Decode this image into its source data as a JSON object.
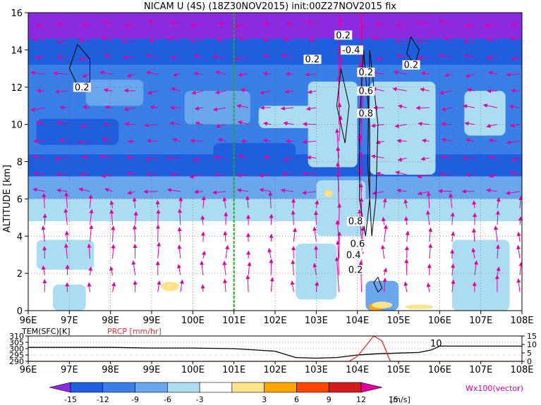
{
  "chart_data": {
    "type": "heatmap",
    "title": "NICAM U (4S) (18Z30NOV2015) init:00Z27NOV2015 fix",
    "main": {
      "ylabel": "ALTITUDE [km]",
      "xlim": [
        96,
        108
      ],
      "ylim": [
        0,
        16
      ],
      "x_ticks": [
        "96E",
        "97E",
        "98E",
        "99E",
        "100E",
        "101E",
        "102E",
        "103E",
        "104E",
        "105E",
        "106E",
        "107E",
        "108E"
      ],
      "y_ticks": [
        "0",
        "2",
        "4",
        "6",
        "8",
        "10",
        "12",
        "14",
        "16"
      ],
      "grid": true,
      "marker_line_x": 101,
      "contour_labels": [
        {
          "text": "0.2",
          "x": 97.3,
          "y": 11.9
        },
        {
          "text": "0.2",
          "x": 103.65,
          "y": 14.7
        },
        {
          "text": "0.2",
          "x": 102.9,
          "y": 13.4
        },
        {
          "text": "-0.4",
          "x": 103.8,
          "y": 13.9
        },
        {
          "text": "0.2",
          "x": 105.3,
          "y": 13.1
        },
        {
          "text": "0.2",
          "x": 104.2,
          "y": 12.7
        },
        {
          "text": "0.6",
          "x": 104.2,
          "y": 11.7
        },
        {
          "text": "0.8",
          "x": 104.2,
          "y": 10.5
        },
        {
          "text": "0.8",
          "x": 103.95,
          "y": 4.7
        },
        {
          "text": "0.6",
          "x": 104.0,
          "y": 3.5
        },
        {
          "text": "0.4",
          "x": 103.9,
          "y": 2.9
        },
        {
          "text": "0.2",
          "x": 103.95,
          "y": 2.1
        }
      ]
    },
    "sub": {
      "label_left": "TEM(SFC)[K]",
      "label_right": "PRCP [mm/hr]",
      "left_ticks": [
        "290",
        "295",
        "300",
        "305",
        "310"
      ],
      "right_ticks": [
        "0",
        "5",
        "10",
        "15"
      ],
      "x_ticks": [
        "96E",
        "97E",
        "98E",
        "99E",
        "100E",
        "101E",
        "102E",
        "103E",
        "104E",
        "105E",
        "106E",
        "107E",
        "108E"
      ],
      "annotation": "10",
      "temperature": {
        "x": [
          96,
          97,
          98,
          99,
          100,
          101,
          102,
          102.5,
          103,
          103.5,
          104,
          104.5,
          105,
          105.5,
          105.8,
          106,
          107,
          108
        ],
        "y": [
          301,
          301,
          301,
          300.5,
          300.5,
          300,
          298,
          293,
          292.5,
          293,
          295,
          296,
          296.5,
          297,
          299,
          302,
          302,
          302
        ]
      },
      "precipitation": {
        "x": [
          96,
          103.8,
          104.0,
          104.2,
          104.4,
          104.6,
          104.8,
          108
        ],
        "y": [
          0,
          0,
          3,
          9,
          15,
          12,
          0,
          0
        ]
      }
    },
    "colorbar": {
      "ticks": [
        "-15",
        "-12",
        "-9",
        "-6",
        "-3",
        "3",
        "6",
        "9",
        "12",
        "15"
      ],
      "unit": "[m/s]",
      "colors": [
        "#8a2be2",
        "#1e5fe0",
        "#3a7ee8",
        "#6aa6ee",
        "#abdcf2",
        "#ffffff",
        "#fde48a",
        "#ffa500",
        "#ff4500",
        "#d21c1c",
        "#e2009a"
      ]
    },
    "vector_label": "Wx100(vector)"
  }
}
